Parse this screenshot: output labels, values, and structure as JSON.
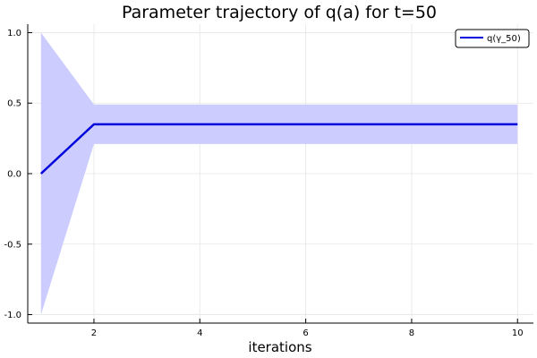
{
  "chart_data": {
    "type": "line",
    "title": "Parameter trajectory of q(a) for t=50",
    "xlabel": "iterations",
    "ylabel": "",
    "xlim": [
      0.75,
      10.3
    ],
    "ylim": [
      -1.06,
      1.06
    ],
    "x_ticks": [
      2,
      4,
      6,
      8,
      10
    ],
    "y_ticks": [
      -1.0,
      -0.5,
      0.0,
      0.5,
      1.0
    ],
    "x_tick_labels": [
      "2",
      "4",
      "6",
      "8",
      "10"
    ],
    "y_tick_labels": [
      "-1.0",
      "-0.5",
      "0.0",
      "0.5",
      "1.0"
    ],
    "grid": true,
    "legend_position": "top-right",
    "series": [
      {
        "name": "q(γ_50)",
        "color": "#0000dd",
        "band_color": "#ccccff",
        "x": [
          1,
          2,
          3,
          4,
          5,
          6,
          7,
          8,
          9,
          10
        ],
        "y": [
          0.0,
          0.35,
          0.35,
          0.35,
          0.35,
          0.35,
          0.35,
          0.35,
          0.35,
          0.35
        ],
        "lower": [
          -1.0,
          0.21,
          0.21,
          0.21,
          0.21,
          0.21,
          0.21,
          0.21,
          0.21,
          0.21
        ],
        "upper": [
          1.0,
          0.49,
          0.49,
          0.49,
          0.49,
          0.49,
          0.49,
          0.49,
          0.49,
          0.49
        ]
      }
    ]
  }
}
